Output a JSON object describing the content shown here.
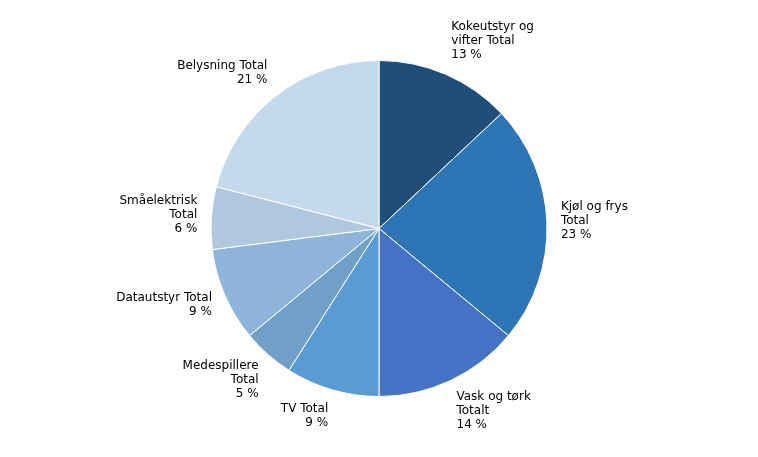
{
  "chart_data": {
    "type": "pie",
    "categories": [
      "Kokeutstyr og\nvifter Total\n13 %",
      "Kjøl og frys\nTotal\n23 %",
      "Vask og tørk\nTotalt\n14 %",
      "TV Total\n9 %",
      "Medespillere\nTotal\n5 %",
      "Datautstyr Total\n9 %",
      "Småelektrisk\nTotal\n6 %",
      "Belysning Total\n21 %"
    ],
    "values": [
      13,
      23,
      14,
      9,
      5,
      9,
      6,
      21
    ],
    "colors": [
      "#1F4E79",
      "#2E75B6",
      "#4472C4",
      "#5B9BD5",
      "#70A0C8",
      "#8EB4D9",
      "#AFC8E0",
      "#C5D9EC"
    ]
  }
}
